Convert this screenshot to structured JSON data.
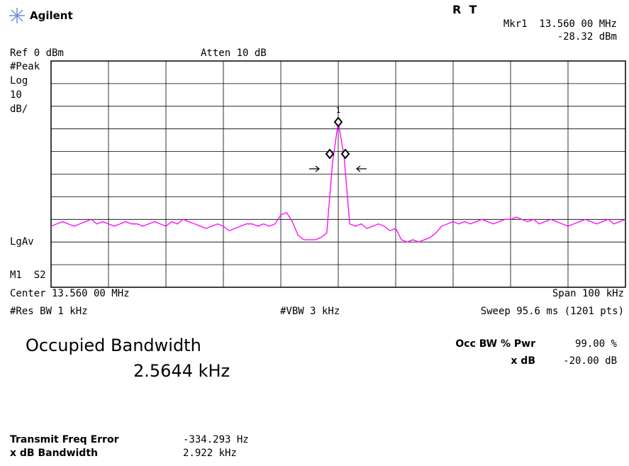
{
  "header": {
    "logo": "Agilent",
    "status": "R  T",
    "marker": "Mkr1  13.560 00 MHz",
    "marker_level": "-28.32 dBm"
  },
  "settings": {
    "ref": "Ref 0 dBm",
    "atten": "Atten 10 dB",
    "detector": "#Peak",
    "scale_type": "Log",
    "scale_value": "10",
    "scale_unit": "dB/",
    "average": "LgAv",
    "trace_mode": "M1  S2",
    "center": "Center 13.560 00 MHz",
    "span": "Span 100 kHz",
    "rbw": "#Res BW 1 kHz",
    "vbw": "#VBW 3 kHz",
    "sweep": "Sweep 95.6 ms (1201 pts)"
  },
  "marker_label": "1",
  "trace": {
    "ylim": [
      -100,
      0
    ],
    "color": "#ff00ff",
    "values": [
      -73,
      -72,
      -71,
      -72,
      -73,
      -72,
      -71,
      -70,
      -72,
      -71,
      -72,
      -73,
      -72,
      -71,
      -72,
      -72,
      -73,
      -72,
      -71,
      -72,
      -73,
      -71,
      -72,
      -70,
      -71,
      -72,
      -73,
      -74,
      -73,
      -72,
      -73,
      -75,
      -74,
      -73,
      -72,
      -72,
      -73,
      -72,
      -73,
      -72,
      -68,
      -67,
      -71,
      -77,
      -79,
      -79,
      -79,
      -78,
      -76,
      -45,
      -27,
      -42,
      -72,
      -73,
      -72,
      -74,
      -73,
      -72,
      -73,
      -75,
      -74,
      -79,
      -80,
      -79,
      -80,
      -79,
      -78,
      -76,
      -73,
      -72,
      -71,
      -72,
      -71,
      -72,
      -71,
      -70,
      -71,
      -72,
      -71,
      -70,
      -70,
      -69,
      -70,
      -71,
      -70,
      -72,
      -71,
      -70,
      -71,
      -72,
      -73,
      -72,
      -71,
      -70,
      -71,
      -72,
      -71,
      -70,
      -72,
      -71,
      -70
    ]
  },
  "result": {
    "title": "Occupied Bandwidth",
    "value": "2.5644 kHz",
    "occ_label": "Occ BW % Pwr",
    "occ_value": "99.00 %",
    "xdb_label": "x dB",
    "xdb_value": "-20.00 dB"
  },
  "details": {
    "freq_error_label": "Transmit Freq Error",
    "freq_error_value": "-334.293 Hz",
    "xdb_bw_label": "x dB Bandwidth",
    "xdb_bw_value": "2.922 kHz"
  }
}
